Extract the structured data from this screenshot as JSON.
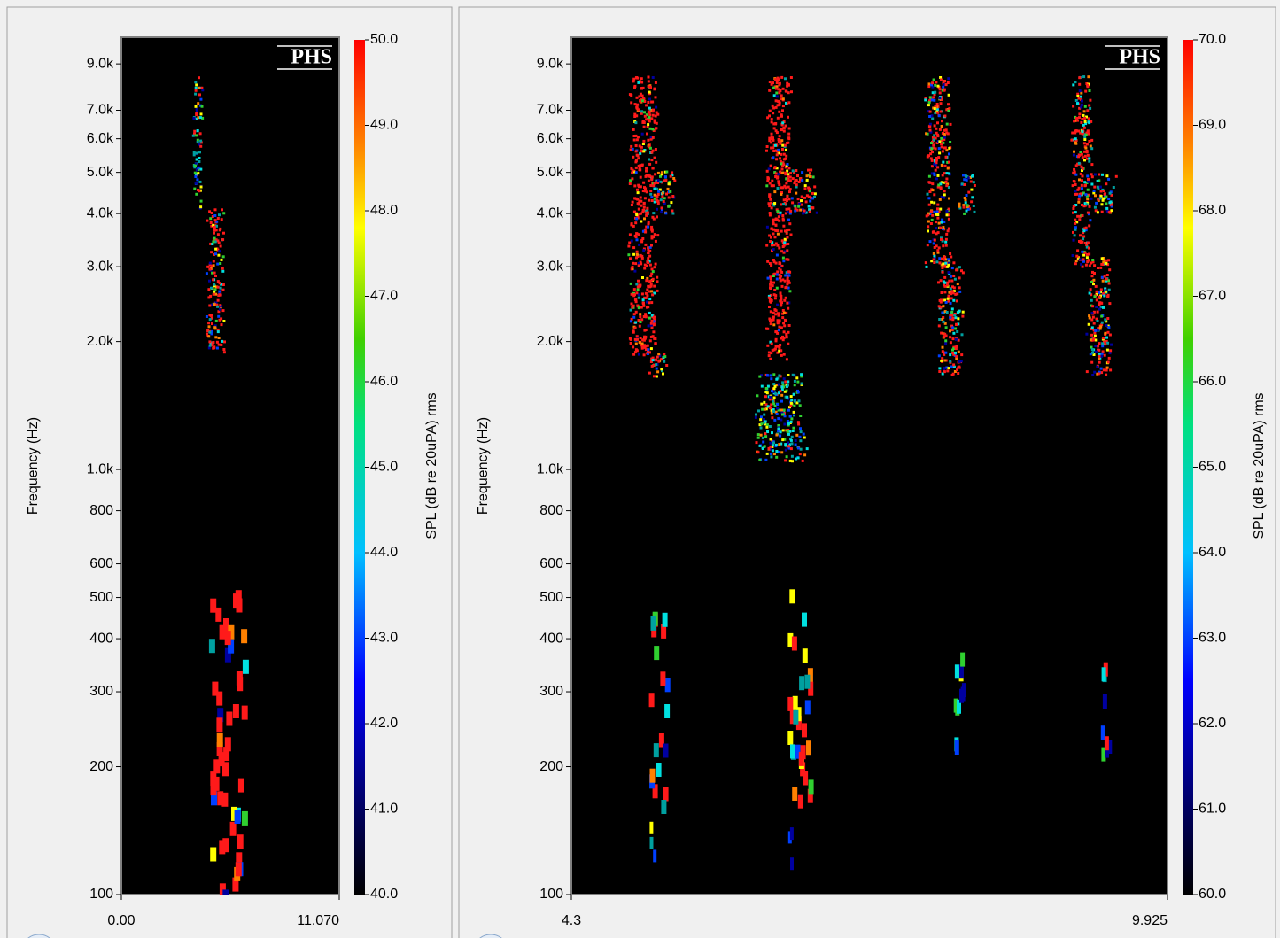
{
  "chart_data": [
    {
      "type": "spectrogram",
      "annotation": "PHS",
      "y_label": "Frequency (Hz)",
      "log_y": true,
      "ylim": [
        100,
        10400
      ],
      "yticks": [
        100,
        200,
        300,
        400,
        500,
        600,
        800,
        {
          "value": 1000,
          "label": "1.0k"
        },
        {
          "value": 2000,
          "label": "2.0k"
        },
        {
          "value": 3000,
          "label": "3.0k"
        },
        {
          "value": 4000,
          "label": "4.0k"
        },
        {
          "value": 5000,
          "label": "5.0k"
        },
        {
          "value": 6000,
          "label": "6.0k"
        },
        {
          "value": 7000,
          "label": "7.0k"
        },
        {
          "value": 9000,
          "label": "9.0k"
        }
      ],
      "xlim": [
        0,
        11.07
      ],
      "xticks": [
        {
          "value": 0,
          "label": "0.00"
        },
        {
          "value": 11.07,
          "label": "11.070"
        }
      ],
      "colorbar": {
        "label": "SPL (dB re 20uPA) rms",
        "lim": [
          40,
          50
        ],
        "ticks": [
          {
            "value": 40,
            "label": "40.0"
          },
          {
            "value": 41,
            "label": "41.0"
          },
          {
            "value": 42,
            "label": "42.0"
          },
          {
            "value": 43,
            "label": "43.0"
          },
          {
            "value": 44,
            "label": "44.0"
          },
          {
            "value": 45,
            "label": "45.0"
          },
          {
            "value": 46,
            "label": "46.0"
          },
          {
            "value": 47,
            "label": "47.0"
          },
          {
            "value": 48,
            "label": "48.0"
          },
          {
            "value": 49,
            "label": "49.0"
          },
          {
            "value": 50,
            "label": "50.0"
          }
        ]
      }
    },
    {
      "type": "spectrogram",
      "annotation": "PHS",
      "y_label": "Frequency (Hz)",
      "log_y": true,
      "ylim": [
        100,
        10400
      ],
      "yticks": [
        100,
        200,
        300,
        400,
        500,
        600,
        800,
        {
          "value": 1000,
          "label": "1.0k"
        },
        {
          "value": 2000,
          "label": "2.0k"
        },
        {
          "value": 3000,
          "label": "3.0k"
        },
        {
          "value": 4000,
          "label": "4.0k"
        },
        {
          "value": 5000,
          "label": "5.0k"
        },
        {
          "value": 6000,
          "label": "6.0k"
        },
        {
          "value": 7000,
          "label": "7.0k"
        },
        {
          "value": 9000,
          "label": "9.0k"
        }
      ],
      "xlim": [
        4.3,
        9.925
      ],
      "xticks": [
        4.3,
        9.925
      ],
      "colorbar": {
        "label": "SPL (dB re 20uPA) rms",
        "lim": [
          60,
          70
        ],
        "ticks": [
          {
            "value": 60,
            "label": "60.0"
          },
          {
            "value": 61,
            "label": "61.0"
          },
          {
            "value": 62,
            "label": "62.0"
          },
          {
            "value": 63,
            "label": "63.0"
          },
          {
            "value": 64,
            "label": "64.0"
          },
          {
            "value": 65,
            "label": "65.0"
          },
          {
            "value": 66,
            "label": "66.0"
          },
          {
            "value": 67,
            "label": "67.0"
          },
          {
            "value": 68,
            "label": "68.0"
          },
          {
            "value": 69,
            "label": "69.0"
          },
          {
            "value": 70,
            "label": "70.0"
          }
        ]
      }
    }
  ]
}
